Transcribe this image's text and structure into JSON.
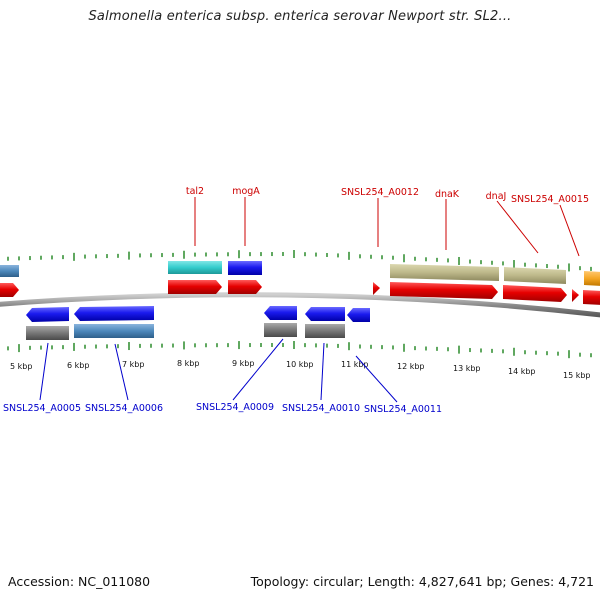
{
  "title": "Salmonella enterica subsp. enterica serovar Newport str. SL2...",
  "footer": {
    "accession": "Accession: NC_011080",
    "summary": "Topology: circular; Length: 4,827,641 bp; Genes: 4,721"
  },
  "colors": {
    "top_label": "#cc0000",
    "bottom_label": "#0000cc",
    "tick": "#2a8a2a",
    "backbone": "#888888",
    "red_feature": "#e60000",
    "blue_feature": "#1a1aee",
    "cyan_feature": "#33cccc",
    "khaki_feature": "#bdb88a",
    "steel_feature": "#4d88bb",
    "gray_feature": "#777777",
    "orange_feature": "#f5a623"
  },
  "kbp_labels": [
    "5 kbp",
    "6 kbp",
    "7 kbp",
    "8 kbp",
    "9 kbp",
    "10 kbp",
    "11 kbp",
    "12 kbp",
    "13 kbp",
    "14 kbp",
    "15 kbp"
  ],
  "top_labels": [
    "tal2",
    "mogA",
    "SNSL254_A0012",
    "dnaK",
    "dnaJ",
    "SNSL254_A0015"
  ],
  "bottom_labels": [
    "SNSL254_A0005",
    "SNSL254_A0006",
    "SNSL254_A0009",
    "SNSL254_A0010",
    "SNSL254_A0011"
  ]
}
